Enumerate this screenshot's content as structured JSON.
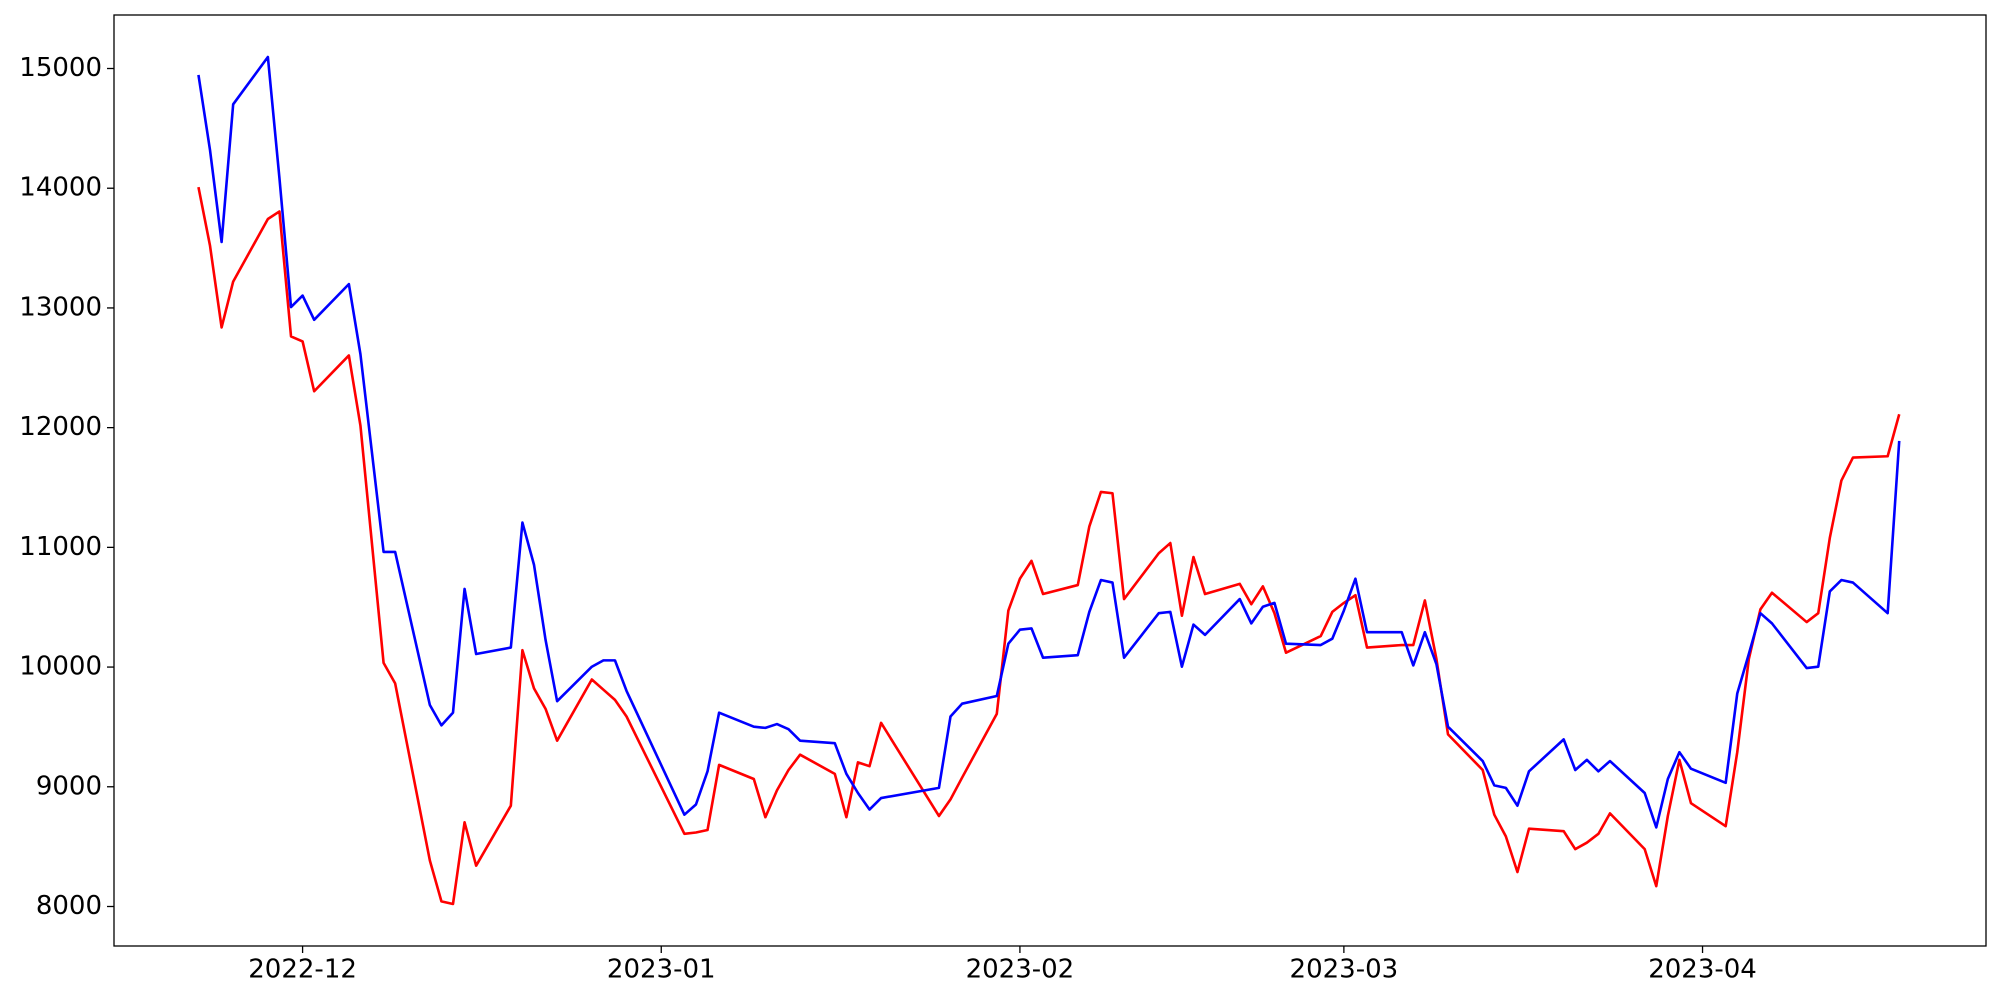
{
  "chart_data": {
    "type": "line",
    "x": [
      -9,
      -8,
      -7,
      -6,
      -3,
      -2,
      -1,
      0,
      1,
      4,
      5,
      7,
      8,
      11,
      12,
      13,
      14,
      15,
      18,
      19,
      20,
      21,
      22,
      25,
      26,
      27,
      28,
      33,
      34,
      35,
      36,
      39,
      40,
      41,
      42,
      43,
      46,
      47,
      48,
      49,
      50,
      55,
      56,
      57,
      60,
      61,
      62,
      63,
      64,
      67,
      68,
      69,
      70,
      71,
      74,
      75,
      76,
      77,
      78,
      81,
      82,
      83,
      84,
      85,
      88,
      89,
      90,
      91,
      92,
      95,
      96,
      97,
      98,
      99,
      102,
      103,
      104,
      105,
      106,
      109,
      110,
      111,
      112,
      113,
      116,
      117,
      118,
      119,
      120,
      123,
      124,
      125,
      126,
      127,
      130,
      131,
      132,
      133,
      134,
      137,
      138
    ],
    "series": [
      {
        "color": "red",
        "values": [
          14009,
          13519,
          12837,
          13220,
          13743,
          13806,
          12762,
          12720,
          12304,
          12603,
          12017,
          10035,
          9864,
          8384,
          8043,
          8021,
          8703,
          8341,
          8842,
          10141,
          9822,
          9651,
          9385,
          9896,
          9811,
          9726,
          9587,
          8607,
          8618,
          8639,
          9183,
          9065,
          8746,
          8970,
          9140,
          9268,
          9108,
          8746,
          9204,
          9172,
          9534,
          8756,
          8895,
          9076,
          9609,
          10472,
          10738,
          10887,
          10610,
          10685,
          11175,
          11463,
          11452,
          10568,
          10951,
          11036,
          10429,
          10919,
          10610,
          10695,
          10525,
          10674,
          10450,
          10120,
          10259,
          10461,
          10536,
          10600,
          10163,
          10184,
          10184,
          10557,
          10067,
          9438,
          9140,
          8767,
          8586,
          8288,
          8650,
          8629,
          8479,
          8533,
          8607,
          8778,
          8479,
          8170,
          8756,
          9225,
          8863,
          8671,
          9289,
          10067,
          10482,
          10621,
          10376,
          10450,
          11079,
          11558,
          11750,
          11761,
          12112
        ]
      },
      {
        "color": "blue",
        "values": [
          14946,
          14318,
          13551,
          14701,
          15096,
          14083,
          13007,
          13103,
          12901,
          13199,
          12613,
          10962,
          10962,
          9683,
          9513,
          9619,
          10653,
          10109,
          10163,
          11207,
          10855,
          10227,
          9715,
          10003,
          10056,
          10056,
          9801,
          8767,
          8852,
          9129,
          9619,
          9502,
          9492,
          9524,
          9481,
          9385,
          9364,
          9108,
          8948,
          8810,
          8906,
          8991,
          9587,
          9694,
          9758,
          10195,
          10312,
          10323,
          10078,
          10099,
          10461,
          10727,
          10706,
          10078,
          10450,
          10461,
          10003,
          10355,
          10269,
          10568,
          10365,
          10504,
          10536,
          10195,
          10184,
          10237,
          10472,
          10738,
          10291,
          10291,
          10014,
          10291,
          10024,
          9502,
          9215,
          9012,
          8991,
          8842,
          9129,
          9396,
          9140,
          9225,
          9129,
          9215,
          8948,
          8661,
          9065,
          9289,
          9151,
          9033,
          9779,
          10109,
          10450,
          10365,
          9992,
          10003,
          10632,
          10727,
          10706,
          10450,
          11889
        ]
      }
    ],
    "xlim": [
      -16.3,
      145.5
    ],
    "xticks": [
      {
        "value": 0,
        "label": "2022-12"
      },
      {
        "value": 31,
        "label": "2023-01"
      },
      {
        "value": 62,
        "label": "2023-02"
      },
      {
        "value": 90,
        "label": "2023-03"
      },
      {
        "value": 121,
        "label": "2023-04"
      }
    ],
    "ylim": [
      7670,
      15447
    ],
    "yticks": [
      8000,
      9000,
      10000,
      11000,
      12000,
      13000,
      14000,
      15000
    ],
    "grid": false
  }
}
